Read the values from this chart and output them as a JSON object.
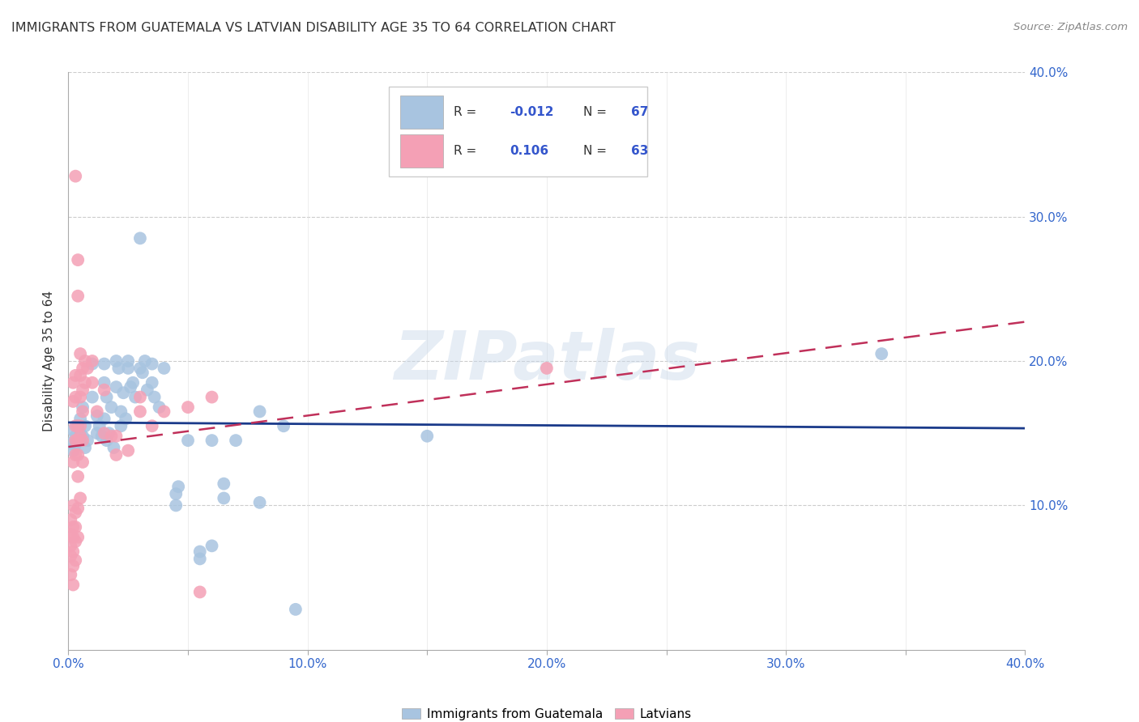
{
  "title": "IMMIGRANTS FROM GUATEMALA VS LATVIAN DISABILITY AGE 35 TO 64 CORRELATION CHART",
  "source": "Source: ZipAtlas.com",
  "ylabel_label": "Disability Age 35 to 64",
  "xlim": [
    0.0,
    0.4
  ],
  "ylim": [
    0.0,
    0.4
  ],
  "xticks": [
    0.0,
    0.05,
    0.1,
    0.15,
    0.2,
    0.25,
    0.3,
    0.35,
    0.4
  ],
  "xtick_labels_shown": {
    "0.0": "0.0%",
    "0.10": "10.0%",
    "0.20": "20.0%",
    "0.30": "30.0%",
    "0.40": "40.0%"
  },
  "yticks": [
    0.1,
    0.2,
    0.3,
    0.4
  ],
  "ytick_labels": [
    "10.0%",
    "20.0%",
    "30.0%",
    "40.0%"
  ],
  "legend_label1": "Immigrants from Guatemala",
  "legend_label2": "Latvians",
  "r1": "-0.012",
  "n1": "67",
  "r2": "0.106",
  "n2": "63",
  "color_blue": "#a8c4e0",
  "color_pink": "#f4a0b5",
  "line_blue": "#1a3a8a",
  "line_pink": "#c0305a",
  "watermark": "ZIPatlas",
  "blue_line_y0": 0.15,
  "blue_line_y1": 0.148,
  "pink_line_y0": 0.13,
  "pink_line_y1": 0.21,
  "blue_points": [
    [
      0.001,
      0.143
    ],
    [
      0.002,
      0.152
    ],
    [
      0.002,
      0.138
    ],
    [
      0.003,
      0.148
    ],
    [
      0.003,
      0.142
    ],
    [
      0.004,
      0.155
    ],
    [
      0.004,
      0.145
    ],
    [
      0.005,
      0.15
    ],
    [
      0.005,
      0.16
    ],
    [
      0.006,
      0.168
    ],
    [
      0.006,
      0.148
    ],
    [
      0.007,
      0.14
    ],
    [
      0.007,
      0.155
    ],
    [
      0.008,
      0.145
    ],
    [
      0.01,
      0.198
    ],
    [
      0.01,
      0.175
    ],
    [
      0.012,
      0.162
    ],
    [
      0.012,
      0.15
    ],
    [
      0.013,
      0.155
    ],
    [
      0.014,
      0.148
    ],
    [
      0.015,
      0.198
    ],
    [
      0.015,
      0.185
    ],
    [
      0.015,
      0.16
    ],
    [
      0.016,
      0.175
    ],
    [
      0.016,
      0.145
    ],
    [
      0.017,
      0.15
    ],
    [
      0.018,
      0.168
    ],
    [
      0.019,
      0.14
    ],
    [
      0.02,
      0.2
    ],
    [
      0.02,
      0.182
    ],
    [
      0.021,
      0.195
    ],
    [
      0.022,
      0.165
    ],
    [
      0.022,
      0.155
    ],
    [
      0.023,
      0.178
    ],
    [
      0.024,
      0.16
    ],
    [
      0.025,
      0.2
    ],
    [
      0.025,
      0.195
    ],
    [
      0.026,
      0.182
    ],
    [
      0.027,
      0.185
    ],
    [
      0.028,
      0.175
    ],
    [
      0.03,
      0.285
    ],
    [
      0.03,
      0.195
    ],
    [
      0.031,
      0.192
    ],
    [
      0.032,
      0.2
    ],
    [
      0.033,
      0.18
    ],
    [
      0.035,
      0.198
    ],
    [
      0.035,
      0.185
    ],
    [
      0.036,
      0.175
    ],
    [
      0.038,
      0.168
    ],
    [
      0.04,
      0.195
    ],
    [
      0.045,
      0.108
    ],
    [
      0.045,
      0.1
    ],
    [
      0.046,
      0.113
    ],
    [
      0.05,
      0.145
    ],
    [
      0.055,
      0.068
    ],
    [
      0.055,
      0.063
    ],
    [
      0.06,
      0.145
    ],
    [
      0.06,
      0.072
    ],
    [
      0.065,
      0.115
    ],
    [
      0.065,
      0.105
    ],
    [
      0.07,
      0.145
    ],
    [
      0.08,
      0.165
    ],
    [
      0.08,
      0.102
    ],
    [
      0.09,
      0.155
    ],
    [
      0.095,
      0.028
    ],
    [
      0.15,
      0.148
    ],
    [
      0.34,
      0.205
    ]
  ],
  "pink_points": [
    [
      0.001,
      0.09
    ],
    [
      0.001,
      0.08
    ],
    [
      0.001,
      0.072
    ],
    [
      0.001,
      0.065
    ],
    [
      0.001,
      0.052
    ],
    [
      0.002,
      0.185
    ],
    [
      0.002,
      0.172
    ],
    [
      0.002,
      0.13
    ],
    [
      0.002,
      0.1
    ],
    [
      0.002,
      0.085
    ],
    [
      0.002,
      0.078
    ],
    [
      0.002,
      0.068
    ],
    [
      0.002,
      0.058
    ],
    [
      0.002,
      0.045
    ],
    [
      0.003,
      0.328
    ],
    [
      0.003,
      0.19
    ],
    [
      0.003,
      0.175
    ],
    [
      0.003,
      0.155
    ],
    [
      0.003,
      0.145
    ],
    [
      0.003,
      0.135
    ],
    [
      0.003,
      0.095
    ],
    [
      0.003,
      0.085
    ],
    [
      0.003,
      0.075
    ],
    [
      0.003,
      0.062
    ],
    [
      0.004,
      0.27
    ],
    [
      0.004,
      0.245
    ],
    [
      0.004,
      0.155
    ],
    [
      0.004,
      0.145
    ],
    [
      0.004,
      0.135
    ],
    [
      0.004,
      0.12
    ],
    [
      0.004,
      0.098
    ],
    [
      0.004,
      0.078
    ],
    [
      0.005,
      0.205
    ],
    [
      0.005,
      0.19
    ],
    [
      0.005,
      0.175
    ],
    [
      0.005,
      0.155
    ],
    [
      0.005,
      0.148
    ],
    [
      0.005,
      0.105
    ],
    [
      0.006,
      0.195
    ],
    [
      0.006,
      0.18
    ],
    [
      0.006,
      0.165
    ],
    [
      0.006,
      0.145
    ],
    [
      0.006,
      0.13
    ],
    [
      0.007,
      0.2
    ],
    [
      0.007,
      0.185
    ],
    [
      0.008,
      0.195
    ],
    [
      0.01,
      0.2
    ],
    [
      0.01,
      0.185
    ],
    [
      0.012,
      0.165
    ],
    [
      0.015,
      0.15
    ],
    [
      0.015,
      0.18
    ],
    [
      0.018,
      0.148
    ],
    [
      0.02,
      0.148
    ],
    [
      0.02,
      0.135
    ],
    [
      0.025,
      0.138
    ],
    [
      0.03,
      0.175
    ],
    [
      0.03,
      0.165
    ],
    [
      0.035,
      0.155
    ],
    [
      0.04,
      0.165
    ],
    [
      0.05,
      0.168
    ],
    [
      0.055,
      0.04
    ],
    [
      0.06,
      0.175
    ],
    [
      0.2,
      0.195
    ]
  ]
}
